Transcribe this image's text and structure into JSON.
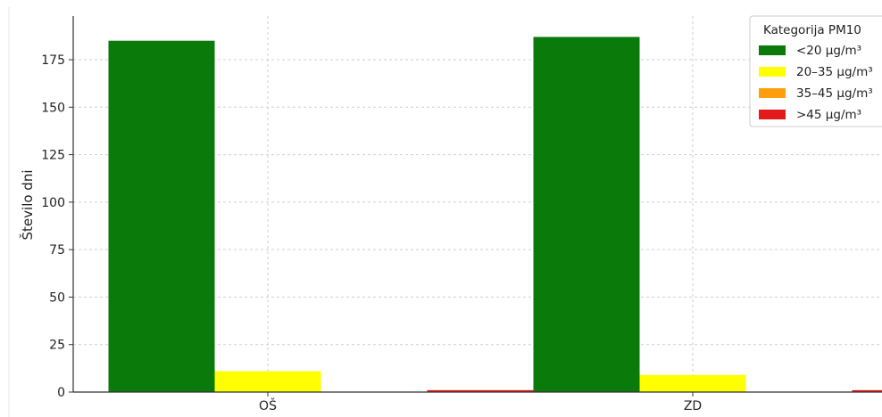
{
  "chart_data": {
    "type": "bar",
    "categories": [
      "OŠ",
      "ZD"
    ],
    "series": [
      {
        "name": "<20 µg/m³",
        "values": [
          185,
          187
        ],
        "color": "#0a7a0a"
      },
      {
        "name": "20–35 µg/m³",
        "values": [
          11,
          9
        ],
        "color": "#ffff00"
      },
      {
        "name": "35–45 µg/m³",
        "values": [
          0,
          0
        ],
        "color": "#ff9f0f"
      },
      {
        "name": ">45 µg/m³",
        "values": [
          1,
          1
        ],
        "color": "#e31a1c"
      }
    ],
    "ylabel": "Število dni",
    "xlabel": "",
    "ylim": [
      0,
      198
    ],
    "yticks": [
      0,
      25,
      50,
      75,
      100,
      125,
      150,
      175
    ],
    "legend": {
      "title": "Kategorija PM10",
      "position": "top-right"
    },
    "grid": true
  }
}
